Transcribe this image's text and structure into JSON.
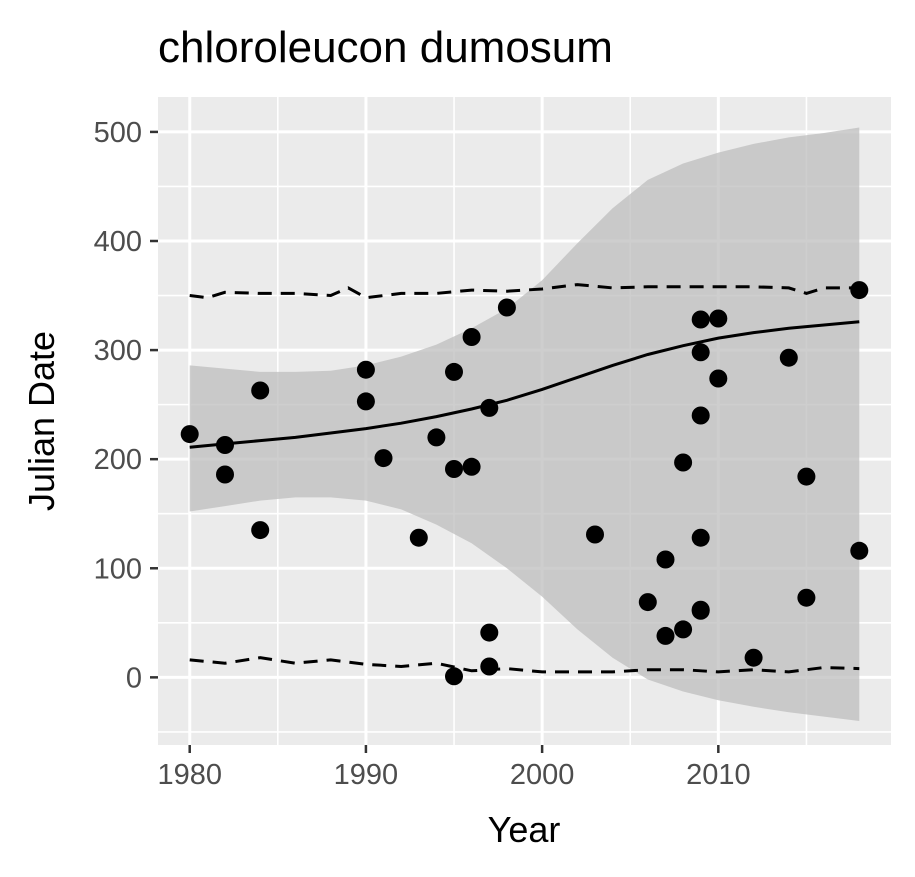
{
  "chart_data": {
    "type": "scatter",
    "title": "chloroleucon dumosum",
    "xlabel": "Year",
    "ylabel": "Julian Date",
    "xlim": [
      1978.2,
      2019.8
    ],
    "ylim": [
      -62,
      532
    ],
    "x_ticks": [
      1980,
      1990,
      2000,
      2010
    ],
    "x_tick_labels": [
      "1980",
      "1990",
      "2000",
      "2010"
    ],
    "y_ticks": [
      0,
      100,
      200,
      300,
      400,
      500
    ],
    "y_tick_labels": [
      "0",
      "100",
      "200",
      "300",
      "400",
      "500"
    ],
    "grid": true,
    "legend": "none",
    "colors": {
      "panel_background": "#ebebeb",
      "grid_major": "#ffffff",
      "points": "#000000",
      "ribbon": "#bebebe",
      "lines": "#000000",
      "tick_text": "#4d4d4d"
    },
    "points": {
      "x": [
        1980,
        1982,
        1982,
        1984,
        1984,
        1990,
        1990,
        1991,
        1993,
        1994,
        1995,
        1995,
        1995,
        1996,
        1996,
        1997,
        1997,
        1997,
        1998,
        2003,
        2006,
        2007,
        2007,
        2008,
        2008,
        2009,
        2009,
        2009,
        2009,
        2009,
        2009,
        2010,
        2010,
        2012,
        2014,
        2015,
        2015,
        2018,
        2018
      ],
      "y": [
        223,
        213,
        186,
        263,
        135,
        282,
        253,
        201,
        128,
        220,
        280,
        191,
        1,
        312,
        193,
        247,
        41,
        10,
        339,
        131,
        69,
        108,
        38,
        197,
        44,
        328,
        298,
        240,
        128,
        62,
        61,
        329,
        274,
        18,
        293,
        184,
        73,
        355,
        116
      ]
    },
    "fit_line": {
      "x": [
        1980,
        1982,
        1984,
        1986,
        1988,
        1990,
        1992,
        1994,
        1996,
        1998,
        2000,
        2002,
        2004,
        2006,
        2008,
        2010,
        2012,
        2014,
        2016,
        2018
      ],
      "y": [
        211,
        214,
        217,
        220,
        224,
        228,
        233,
        239,
        246,
        254,
        264,
        275,
        286,
        296,
        304,
        311,
        316,
        320,
        323,
        326
      ]
    },
    "ribbon": {
      "x": [
        1980,
        1982,
        1984,
        1986,
        1988,
        1990,
        1992,
        1994,
        1996,
        1998,
        2000,
        2002,
        2004,
        2006,
        2008,
        2010,
        2012,
        2014,
        2016,
        2018
      ],
      "upper": [
        286,
        283,
        280,
        280,
        281,
        286,
        294,
        305,
        320,
        338,
        364,
        398,
        430,
        456,
        471,
        481,
        489,
        495,
        499,
        504
      ],
      "lower": [
        152,
        157,
        162,
        165,
        165,
        162,
        154,
        140,
        123,
        100,
        74,
        44,
        18,
        -2,
        -13,
        -21,
        -27,
        -32,
        -36,
        -40
      ]
    },
    "quantile_upper": {
      "x": [
        1980,
        1981,
        1982,
        1984,
        1986,
        1988,
        1989,
        1990,
        1992,
        1994,
        1996,
        1998,
        2000,
        2002,
        2004,
        2006,
        2008,
        2010,
        2012,
        2014,
        2015,
        2016,
        2018
      ],
      "y": [
        350,
        348,
        353,
        352,
        352,
        350,
        357,
        348,
        352,
        352,
        355,
        354,
        356,
        360,
        357,
        358,
        358,
        358,
        358,
        357,
        352,
        357,
        357
      ]
    },
    "quantile_lower": {
      "x": [
        1980,
        1982,
        1984,
        1986,
        1988,
        1990,
        1992,
        1994,
        1996,
        1998,
        2000,
        2002,
        2004,
        2006,
        2008,
        2010,
        2012,
        2014,
        2016,
        2018
      ],
      "y": [
        16,
        13,
        18,
        13,
        16,
        12,
        10,
        13,
        6,
        8,
        5,
        5,
        5,
        7,
        7,
        5,
        7,
        5,
        9,
        8
      ]
    }
  }
}
